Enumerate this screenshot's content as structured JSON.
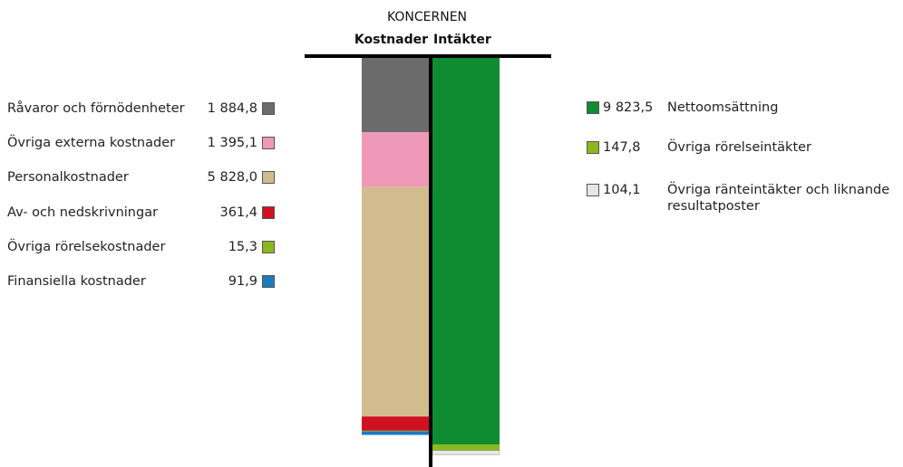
{
  "chart_data": {
    "type": "bar-stack",
    "title": "KONCERNEN",
    "categories": [
      "Kostnader",
      "Intäkter"
    ],
    "stacks": [
      {
        "series": [
          {
            "name": "Råvaror och förnödenheter",
            "color": "#6b6b6b",
            "value": 1884.8,
            "value_label": "1 884,8"
          },
          {
            "name": "Övriga externa kostnader",
            "color": "#ef99b8",
            "value": 1395.1,
            "value_label": "1 395,1"
          },
          {
            "name": "Personalkostnader",
            "color": "#d1bc90",
            "value": 5828.0,
            "value_label": "5 828,0"
          },
          {
            "name": "Av- och nedskrivningar",
            "color": "#d0111f",
            "value": 361.4,
            "value_label": "361,4"
          },
          {
            "name": "Övriga rörelsekostnader",
            "color": "#8db81c",
            "value": 15.3,
            "value_label": "15,3"
          },
          {
            "name": "Finansiella kostnader",
            "color": "#1b7bbf",
            "value": 91.9,
            "value_label": "91,9"
          }
        ]
      },
      {
        "series": [
          {
            "name": "Nettoomsättning",
            "color": "#0f8c31",
            "value": 9823.5,
            "value_label": "9 823,5"
          },
          {
            "name": "Övriga rörelseintäkter",
            "color": "#8db81c",
            "value": 147.8,
            "value_label": "147,8"
          },
          {
            "name": "Övriga ränteintäkter och liknande resultatposter",
            "color": "#e6e6e6",
            "value": 104.1,
            "value_label": "104,1"
          }
        ]
      }
    ]
  }
}
